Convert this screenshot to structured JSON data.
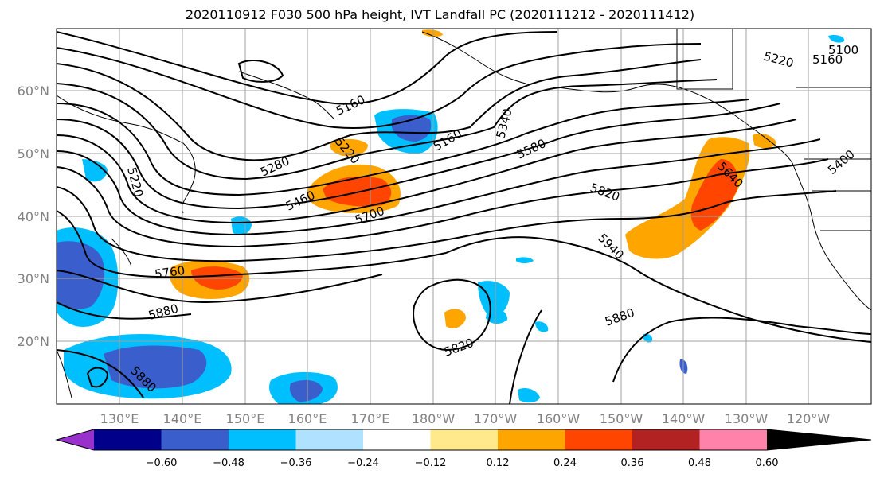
{
  "title": "2020110912 F030 500 hPa height, IVT Landfall PC (2020111212 - 2020111412)",
  "map": {
    "lon_labels": [
      "130°E",
      "140°E",
      "150°E",
      "160°E",
      "170°E",
      "180°W",
      "170°W",
      "160°W",
      "150°W",
      "140°W",
      "130°W",
      "120°W"
    ],
    "lat_labels": [
      "60°N",
      "50°N",
      "40°N",
      "30°N",
      "20°N"
    ],
    "height_contour_labels": [
      "5100",
      "5160",
      "5220",
      "5160",
      "5160",
      "5280",
      "5220",
      "5220",
      "5340",
      "5400",
      "5460",
      "5580",
      "5640",
      "5700",
      "5760",
      "5820",
      "5820",
      "5880",
      "5880",
      "5880",
      "5940"
    ],
    "shading_colors": {
      "negative": [
        "#9932cc",
        "#00008b",
        "#3a5fcd",
        "#00bfff",
        "#b0e2ff"
      ],
      "neutral": "#ffffff",
      "positive": [
        "#ffe98c",
        "#ffa500",
        "#ff4500",
        "#b22222",
        "#ff82ab"
      ]
    }
  },
  "colorbar": {
    "tick_labels": [
      "−0.60",
      "−0.48",
      "−0.36",
      "−0.24",
      "−0.12",
      "0.12",
      "0.24",
      "0.36",
      "0.48",
      "0.60"
    ],
    "colors": [
      "#9932cc",
      "#00008b",
      "#3a5fcd",
      "#00bfff",
      "#b0e2ff",
      "#ffffff",
      "#ffe98c",
      "#ffa500",
      "#ff4500",
      "#b22222",
      "#ff82ab"
    ]
  }
}
